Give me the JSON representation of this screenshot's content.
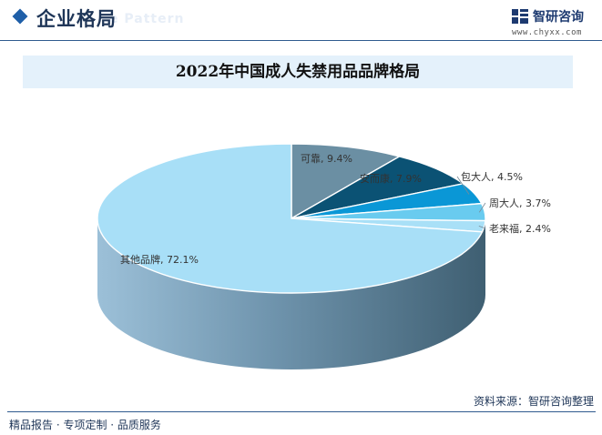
{
  "header": {
    "section_title": "企业格局",
    "ghost_text": "e Pattern",
    "logo_name": "智研咨询",
    "logo_url": "www.chyxx.com"
  },
  "footer": {
    "source": "资料来源：智研咨询整理",
    "tagline": "精品报告 · 专项定制 · 品质服务"
  },
  "colors": {
    "accent": "#1f5fa8",
    "title_band": "#e4f1fb"
  },
  "chart_data": {
    "type": "pie",
    "title": "2022年中国成人失禁用品品牌格局",
    "slices": [
      {
        "name": "可靠",
        "value": 9.4,
        "label": "可靠, 9.4%",
        "color": "#6b8fa3"
      },
      {
        "name": "安而康",
        "value": 7.9,
        "label": "安而康, 7.9%",
        "color": "#0b5274"
      },
      {
        "name": "包大人",
        "value": 4.5,
        "label": "包大人, 4.5%",
        "color": "#0a97d6"
      },
      {
        "name": "周大人",
        "value": 3.7,
        "label": "周大人, 3.7%",
        "color": "#69cbef"
      },
      {
        "name": "老来福",
        "value": 2.4,
        "label": "老来福, 2.4%",
        "color": "#a9e0f7"
      },
      {
        "name": "其他品牌",
        "value": 72.1,
        "label": "其他品牌, 72.1%",
        "color": "#a8dff7"
      }
    ]
  }
}
